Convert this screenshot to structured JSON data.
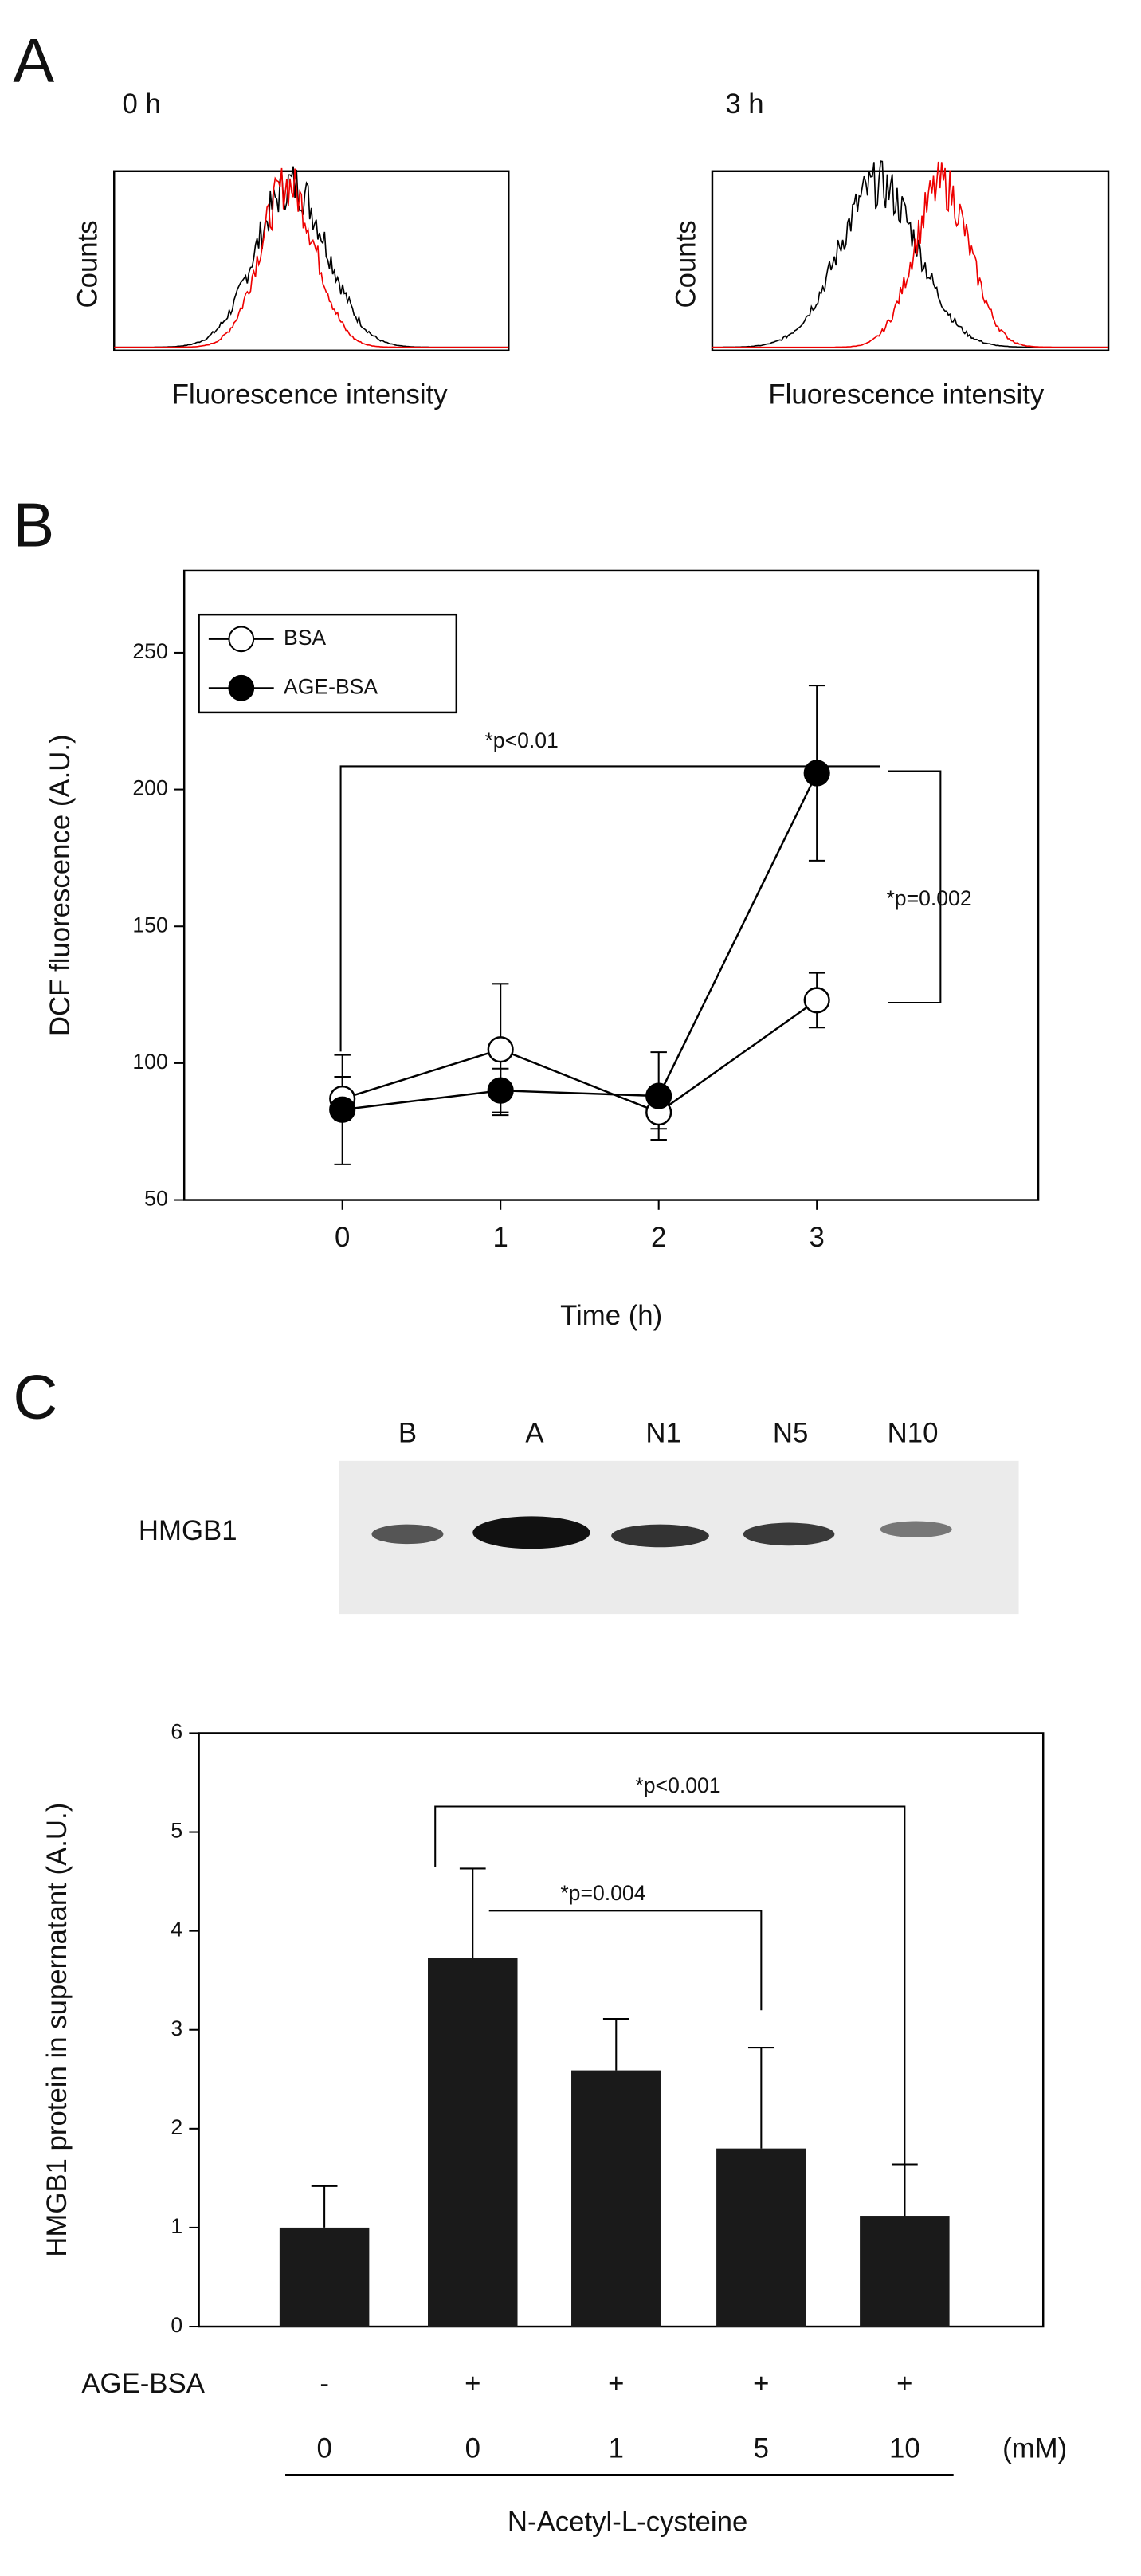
{
  "chart_data": [
    {
      "type": "flow-histogram",
      "panel_label": "A",
      "panels": [
        {
          "title": "0 h",
          "ylabel": "Counts",
          "xlabel": "Fluorescence intensity"
        },
        {
          "title": "3 h",
          "ylabel": "Counts",
          "xlabel": "Fluorescence intensity"
        }
      ]
    },
    {
      "type": "line",
      "panel_label": "B",
      "xlabel": "Time (h)",
      "ylabel": "DCF fluorescence (A.U.)",
      "x": [
        0,
        1,
        2,
        3
      ],
      "xlim": [
        -1,
        4.4
      ],
      "xticks": [
        0,
        1,
        2,
        3
      ],
      "ylim": [
        50,
        280
      ],
      "yticks": [
        50,
        100,
        150,
        200,
        250
      ],
      "legend": "upper left",
      "series": [
        {
          "name": "BSA",
          "marker": "open",
          "color": "#000000",
          "values": [
            87,
            105,
            82,
            123
          ],
          "errors": [
            8,
            24,
            6,
            10
          ]
        },
        {
          "name": "AGE-BSA",
          "marker": "filled",
          "color": "#000000",
          "values": [
            83,
            90,
            88,
            206
          ],
          "errors": [
            20,
            8,
            16,
            32
          ]
        }
      ],
      "annotations": [
        "*p<0.01",
        "*p=0.002"
      ]
    },
    {
      "type": "bar",
      "panel_label": "C",
      "blot_label": "HMGB1",
      "lane_labels": [
        "B",
        "A",
        "N1",
        "N5",
        "N10"
      ],
      "ylabel": "HMGB1 protein in supernatant (A.U.)",
      "row_label": "AGE-BSA",
      "row_values": [
        "-",
        "+",
        "+",
        "+",
        "+"
      ],
      "categories": [
        "0",
        "0",
        "1",
        "5",
        "10"
      ],
      "unit_label": "(mM)",
      "xlabel": "N-Acetyl-L-cysteine",
      "values": [
        1.0,
        3.73,
        2.59,
        1.8,
        1.12
      ],
      "errors": [
        0.42,
        0.9,
        0.52,
        1.02,
        0.52
      ],
      "color": "#1a1a1a",
      "ylim": [
        0,
        6
      ],
      "yticks": [
        0,
        1,
        2,
        3,
        4,
        5,
        6
      ],
      "annotations": [
        "*p<0.001",
        "*p=0.004"
      ]
    }
  ]
}
